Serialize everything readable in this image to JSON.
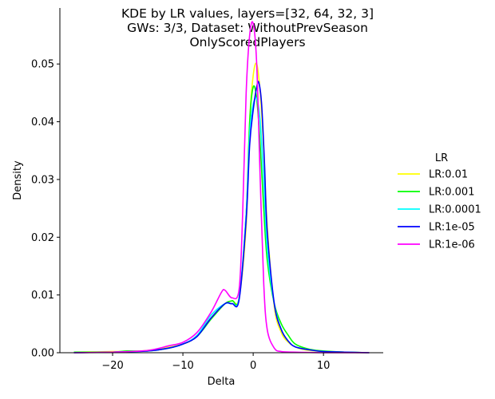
{
  "chart_data": {
    "type": "line",
    "title_lines": [
      "KDE by LR values, layers=[32, 64, 32, 3]",
      "GWs: 3/3, Dataset: WithoutPrevSeason",
      "OnlyScoredPlayers"
    ],
    "xlabel": "Delta",
    "ylabel": "Density",
    "xlim": [
      -27.5,
      18.5
    ],
    "ylim": [
      0,
      0.0597
    ],
    "xticks": [
      -20,
      -10,
      0,
      10
    ],
    "xtick_labels": [
      "−20",
      "−10",
      "0",
      "10"
    ],
    "yticks": [
      0,
      0.01,
      0.02,
      0.03,
      0.04,
      0.05
    ],
    "ytick_labels": [
      "0.00",
      "0.01",
      "0.02",
      "0.03",
      "0.04",
      "0.05"
    ],
    "grid": false,
    "legend": {
      "title": "LR",
      "position": "right"
    },
    "series": [
      {
        "name": "LR:0.01",
        "color": "#ffff00",
        "x": [
          -25.5,
          -20,
          -15,
          -10,
          -8,
          -6,
          -4,
          -3,
          -2,
          -1,
          -0.5,
          0,
          0.5,
          1,
          1.5,
          2,
          3,
          4,
          5,
          6,
          7,
          8,
          10,
          13,
          16.5
        ],
        "y": [
          0.0001,
          0.0002,
          0.0004,
          0.0015,
          0.003,
          0.006,
          0.0085,
          0.009,
          0.0095,
          0.022,
          0.04,
          0.048,
          0.05,
          0.045,
          0.035,
          0.022,
          0.008,
          0.0035,
          0.0018,
          0.001,
          0.0006,
          0.0004,
          0.0002,
          0.0001,
          0.0
        ]
      },
      {
        "name": "LR:0.001",
        "color": "#00ff00",
        "x": [
          -25.5,
          -20,
          -18,
          -15,
          -12,
          -10,
          -8,
          -6,
          -4,
          -3,
          -2,
          -1,
          -0.5,
          0,
          0.5,
          1,
          1.5,
          2,
          3,
          4,
          5,
          6,
          8,
          10,
          13,
          16.5
        ],
        "y": [
          0.0001,
          0.0001,
          0.0003,
          0.0003,
          0.0008,
          0.0015,
          0.0028,
          0.0058,
          0.0085,
          0.009,
          0.0095,
          0.024,
          0.04,
          0.046,
          0.044,
          0.036,
          0.025,
          0.016,
          0.0085,
          0.005,
          0.003,
          0.0015,
          0.0006,
          0.0003,
          0.0001,
          0.0
        ]
      },
      {
        "name": "LR:0.0001",
        "color": "#00ffff",
        "x": [
          -25.5,
          -20,
          -15,
          -12,
          -10,
          -8,
          -6,
          -4,
          -3,
          -2,
          -1,
          -0.5,
          0,
          0.5,
          1,
          1.5,
          2,
          3,
          4,
          5,
          6,
          8,
          10,
          13,
          16.5
        ],
        "y": [
          0.0,
          0.0001,
          0.0003,
          0.0008,
          0.0015,
          0.003,
          0.0065,
          0.0085,
          0.0085,
          0.0095,
          0.024,
          0.038,
          0.043,
          0.044,
          0.04,
          0.03,
          0.018,
          0.0085,
          0.004,
          0.002,
          0.001,
          0.0005,
          0.0002,
          0.0001,
          0.0
        ]
      },
      {
        "name": "LR:1e-05",
        "color": "#0000ff",
        "x": [
          -25.5,
          -20,
          -15,
          -12,
          -10,
          -8,
          -6,
          -4,
          -3,
          -2,
          -1,
          -0.5,
          0,
          0.5,
          0.8,
          1.2,
          1.6,
          2,
          3,
          4,
          5,
          6,
          8,
          10,
          13,
          16.5
        ],
        "y": [
          0.0,
          0.0001,
          0.0003,
          0.0008,
          0.0015,
          0.0028,
          0.006,
          0.0085,
          0.0085,
          0.0092,
          0.023,
          0.036,
          0.042,
          0.046,
          0.0468,
          0.043,
          0.033,
          0.021,
          0.0085,
          0.004,
          0.002,
          0.001,
          0.0005,
          0.0002,
          0.0001,
          0.0
        ]
      },
      {
        "name": "LR:1e-06",
        "color": "#ff00ff",
        "x": [
          -25.5,
          -20,
          -15,
          -12,
          -10,
          -8,
          -6,
          -4.5,
          -4,
          -3,
          -2,
          -1.5,
          -1,
          -0.5,
          0,
          0.5,
          1,
          1.5,
          2,
          3,
          4,
          6,
          10,
          16.5
        ],
        "y": [
          0.0,
          0.0001,
          0.0004,
          0.0012,
          0.0018,
          0.0035,
          0.007,
          0.0105,
          0.0108,
          0.0095,
          0.011,
          0.024,
          0.045,
          0.055,
          0.057,
          0.05,
          0.03,
          0.012,
          0.004,
          0.0008,
          0.0002,
          0.0001,
          0.0,
          0.0
        ]
      }
    ]
  }
}
